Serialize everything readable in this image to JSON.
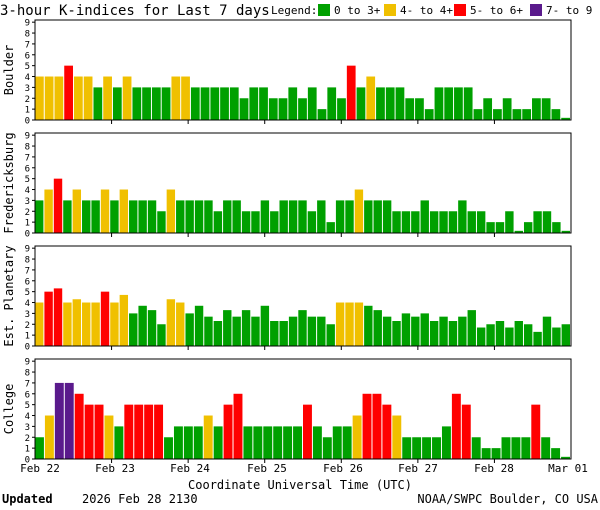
{
  "title": "3-hour K-indices for Last 7 days",
  "legend": {
    "label": "Legend:",
    "items": [
      {
        "label": "0 to 3+",
        "color": "#00a000"
      },
      {
        "label": "4- to 4+",
        "color": "#f0c000"
      },
      {
        "label": "5- to 6+",
        "color": "#ff0000"
      },
      {
        "label": "7- to 9",
        "color": "#5a1a8c"
      }
    ]
  },
  "x_axis": {
    "label": "Coordinate Universal Time (UTC)",
    "ticks": [
      "Feb 22",
      "Feb 23",
      "Feb 24",
      "Feb 25",
      "Feb 26",
      "Feb 27",
      "Feb 28",
      "Mar 01"
    ]
  },
  "footer": {
    "updated_label": "Updated",
    "updated_value": "2026 Feb 28 2130",
    "credit": "NOAA/SWPC Boulder, CO USA"
  },
  "chart_data": [
    {
      "type": "bar",
      "title": "Boulder",
      "ylabel": "Boulder",
      "ylim": [
        0,
        9
      ],
      "y_ticks": [
        "0",
        "1",
        "2",
        "3",
        "4",
        "5",
        "6",
        "7",
        "8",
        "9"
      ],
      "values": [
        4,
        4,
        4,
        5,
        4,
        4,
        3,
        4,
        3,
        4,
        3,
        3,
        3,
        3,
        4,
        4,
        3,
        3,
        3,
        3,
        3,
        2,
        3,
        3,
        2,
        2,
        3,
        2,
        3,
        1,
        3,
        2,
        5,
        3,
        4,
        3,
        3,
        3,
        2,
        2,
        1,
        3,
        3,
        3,
        3,
        1,
        2,
        1,
        2,
        1,
        1,
        2,
        2,
        1,
        0.2
      ]
    },
    {
      "type": "bar",
      "title": "Fredericksburg",
      "ylabel": "Fredericksburg",
      "ylim": [
        0,
        9
      ],
      "y_ticks": [
        "0",
        "1",
        "2",
        "3",
        "4",
        "5",
        "6",
        "7",
        "8",
        "9"
      ],
      "values": [
        3,
        4,
        5,
        3,
        4,
        3,
        3,
        4,
        3,
        4,
        3,
        3,
        3,
        2,
        4,
        3,
        3,
        3,
        3,
        2,
        3,
        3,
        2,
        2,
        3,
        2,
        3,
        3,
        3,
        2,
        3,
        1,
        3,
        3,
        4,
        3,
        3,
        3,
        2,
        2,
        2,
        3,
        2,
        2,
        2,
        3,
        2,
        2,
        1,
        1,
        2,
        0.2,
        1,
        2,
        2,
        1,
        0.2
      ]
    },
    {
      "type": "bar",
      "title": "Est. Planetary",
      "ylabel": "Est. Planetary",
      "ylim": [
        0,
        9
      ],
      "y_ticks": [
        "0",
        "1",
        "2",
        "3",
        "4",
        "5",
        "6",
        "7",
        "8",
        "9"
      ],
      "values": [
        4,
        5,
        5.3,
        4,
        4.3,
        4,
        4,
        5,
        4,
        4.7,
        3,
        3.7,
        3.3,
        2,
        4.3,
        4,
        3,
        3.7,
        2.7,
        2.3,
        3.3,
        2.7,
        3.3,
        2.7,
        3.7,
        2.3,
        2.3,
        2.7,
        3.3,
        2.7,
        2.7,
        2,
        4,
        4,
        4,
        3.7,
        3.3,
        2.7,
        2.3,
        3,
        2.7,
        3,
        2.3,
        2.7,
        2.3,
        2.7,
        3.3,
        1.7,
        2,
        2.3,
        1.7,
        2.3,
        2,
        1.3,
        2.7,
        1.7,
        2
      ]
    },
    {
      "type": "bar",
      "title": "College",
      "ylabel": "College",
      "ylim": [
        0,
        9
      ],
      "y_ticks": [
        "0",
        "1",
        "2",
        "3",
        "4",
        "5",
        "6",
        "7",
        "8",
        "9"
      ],
      "values": [
        2,
        4,
        7,
        7,
        6,
        5,
        5,
        4,
        3,
        5,
        5,
        5,
        5,
        2,
        3,
        3,
        3,
        4,
        3,
        5,
        6,
        3,
        3,
        3,
        3,
        3,
        3,
        5,
        3,
        2,
        3,
        3,
        4,
        6,
        6,
        5,
        4,
        2,
        2,
        2,
        2,
        3,
        6,
        5,
        2,
        1,
        1,
        2,
        2,
        2,
        5,
        2,
        1,
        0.2
      ]
    }
  ]
}
